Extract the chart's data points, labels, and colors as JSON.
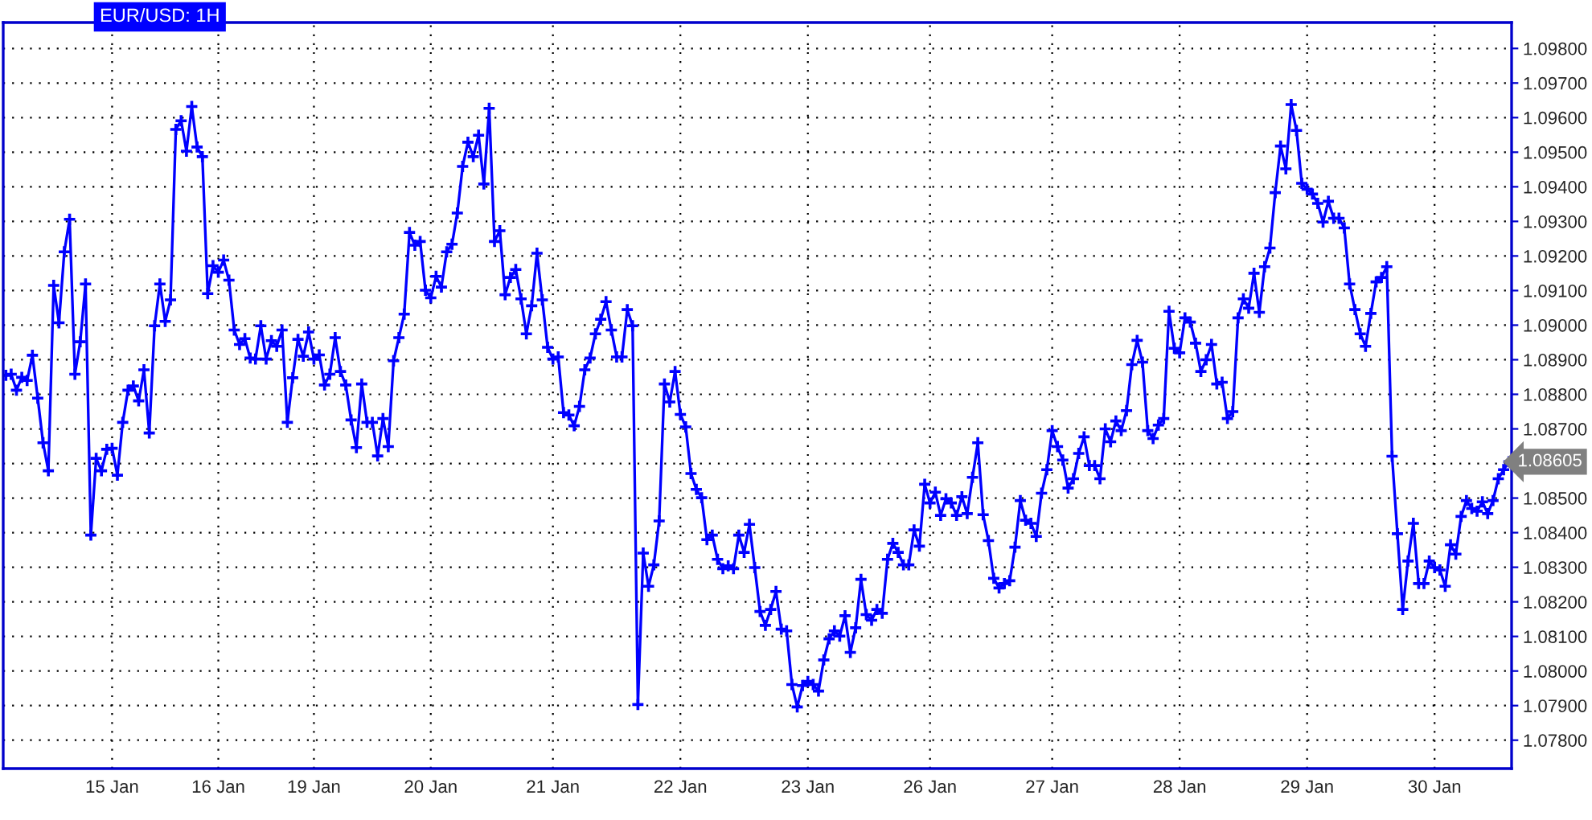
{
  "chart_data": {
    "type": "line",
    "title": "EUR/USD: 1H",
    "categories": [
      null,
      null,
      null,
      null,
      null,
      null,
      null,
      null,
      null,
      null,
      null,
      null,
      null,
      null,
      null,
      null,
      null,
      null,
      null,
      null,
      "15 Jan",
      null,
      null,
      null,
      null,
      null,
      null,
      null,
      null,
      null,
      null,
      null,
      null,
      null,
      null,
      null,
      null,
      null,
      null,
      null,
      "16 Jan",
      null,
      null,
      null,
      null,
      null,
      null,
      null,
      null,
      null,
      null,
      null,
      null,
      null,
      null,
      null,
      null,
      null,
      "19 Jan",
      null,
      null,
      null,
      null,
      null,
      null,
      null,
      null,
      null,
      null,
      null,
      null,
      null,
      null,
      null,
      null,
      null,
      null,
      null,
      null,
      null,
      "20 Jan",
      null,
      null,
      null,
      null,
      null,
      null,
      null,
      null,
      null,
      null,
      null,
      null,
      null,
      null,
      null,
      null,
      null,
      null,
      null,
      null,
      null,
      null,
      "21 Jan",
      null,
      null,
      null,
      null,
      null,
      null,
      null,
      null,
      null,
      null,
      null,
      null,
      null,
      null,
      null,
      null,
      null,
      null,
      null,
      null,
      null,
      null,
      null,
      "22 Jan",
      null,
      null,
      null,
      null,
      null,
      null,
      null,
      null,
      null,
      null,
      null,
      null,
      null,
      null,
      null,
      null,
      null,
      null,
      null,
      null,
      null,
      null,
      null,
      "23 Jan",
      null,
      null,
      null,
      null,
      null,
      null,
      null,
      null,
      null,
      null,
      null,
      null,
      null,
      null,
      null,
      null,
      null,
      null,
      null,
      null,
      null,
      null,
      "26 Jan",
      null,
      null,
      null,
      null,
      null,
      null,
      null,
      null,
      null,
      null,
      null,
      null,
      null,
      null,
      null,
      null,
      null,
      null,
      null,
      null,
      null,
      null,
      "27 Jan",
      null,
      null,
      null,
      null,
      null,
      null,
      null,
      null,
      null,
      null,
      null,
      null,
      null,
      null,
      null,
      null,
      null,
      null,
      null,
      null,
      null,
      null,
      null,
      "28 Jan",
      null,
      null,
      null,
      null,
      null,
      null,
      null,
      null,
      null,
      null,
      null,
      null,
      null,
      null,
      null,
      null,
      null,
      null,
      null,
      null,
      null,
      null,
      null,
      "29 Jan",
      null,
      null,
      null,
      null,
      null,
      null,
      null,
      null,
      null,
      null,
      null,
      null,
      null,
      null,
      null,
      null,
      null,
      null,
      null,
      null,
      null,
      null,
      null,
      "30 Jan",
      null,
      null,
      null,
      null,
      null,
      null,
      null,
      null,
      null,
      null,
      null,
      null,
      null,
      null
    ],
    "series": [
      {
        "color": "#0000ff",
        "values": [
          1.08855,
          1.08858,
          1.08812,
          1.08849,
          1.0884,
          1.08913,
          1.08789,
          1.0866,
          1.08579,
          1.09115,
          1.09007,
          1.09212,
          1.09306,
          1.08858,
          1.08952,
          1.09119,
          1.08393,
          1.08615,
          1.08579,
          1.08641,
          1.08644,
          1.08566,
          1.08719,
          1.08812,
          1.08824,
          1.08781,
          1.08871,
          1.08688,
          1.08998,
          1.09119,
          1.09011,
          1.09073,
          1.09566,
          1.09591,
          1.09503,
          1.09632,
          1.09515,
          1.09487,
          1.09091,
          1.09172,
          1.09153,
          1.09188,
          1.0913,
          1.08986,
          1.08944,
          1.08961,
          1.08905,
          1.08902,
          1.08998,
          1.08902,
          1.08955,
          1.08939,
          1.08986,
          1.08719,
          1.08848,
          1.08959,
          1.0891,
          1.0898,
          1.08902,
          1.08914,
          1.08827,
          1.08858,
          1.08964,
          1.08866,
          1.08827,
          1.08726,
          1.08646,
          1.0883,
          1.08719,
          1.08719,
          1.08622,
          1.0873,
          1.08649,
          1.08897,
          1.08964,
          1.09032,
          1.09268,
          1.09231,
          1.09242,
          1.09101,
          1.09079,
          1.09141,
          1.0911,
          1.09212,
          1.09234,
          1.09324,
          1.09459,
          1.09529,
          1.09487,
          1.09549,
          1.09408,
          1.09627,
          1.09242,
          1.09273,
          1.09088,
          1.09138,
          1.09161,
          1.09076,
          1.08975,
          1.09056,
          1.09208,
          1.09073,
          1.08936,
          1.08902,
          1.08908,
          1.08747,
          1.0874,
          1.08709,
          1.08765,
          1.08871,
          1.08905,
          1.08975,
          1.09017,
          1.09068,
          1.08986,
          1.08908,
          1.08908,
          1.09045,
          1.08998,
          1.07903,
          1.08341,
          1.08245,
          1.08307,
          1.08434,
          1.0883,
          1.08778,
          1.08866,
          1.08742,
          1.08706,
          1.08571,
          1.08525,
          1.08501,
          1.0838,
          1.08393,
          1.08323,
          1.08296,
          1.08304,
          1.08296,
          1.08393,
          1.08343,
          1.08424,
          1.08299,
          1.08172,
          1.08132,
          1.08178,
          1.0823,
          1.08121,
          1.08116,
          1.07961,
          1.07896,
          1.07958,
          1.0797,
          1.07961,
          1.07942,
          1.08032,
          1.08093,
          1.08116,
          1.08101,
          1.0816,
          1.08054,
          1.08125,
          1.08265,
          1.08163,
          1.08147,
          1.08178,
          1.08167,
          1.08323,
          1.08369,
          1.08343,
          1.08307,
          1.08307,
          1.08408,
          1.08361,
          1.0854,
          1.08486,
          1.08517,
          1.0845,
          1.08498,
          1.08486,
          1.0845,
          1.08504,
          1.08455,
          1.0856,
          1.0866,
          1.08452,
          1.08377,
          1.08268,
          1.0824,
          1.08253,
          1.08261,
          1.08358,
          1.08493,
          1.08436,
          1.08427,
          1.08389,
          1.08514,
          1.08582,
          1.08695,
          1.08649,
          1.0861,
          1.08529,
          1.08556,
          1.08629,
          1.08677,
          1.08594,
          1.08594,
          1.08556,
          1.087,
          1.08663,
          1.08723,
          1.08695,
          1.08753,
          1.08886,
          1.08956,
          1.08893,
          1.08695,
          1.08672,
          1.08711,
          1.0873,
          1.0904,
          1.08933,
          1.0892,
          1.09021,
          1.09009,
          1.08948,
          1.08866,
          1.089,
          1.08944,
          1.0883,
          1.08835,
          1.0873,
          1.0875,
          1.09021,
          1.09076,
          1.09049,
          1.0915,
          1.09037,
          1.09169,
          1.09223,
          1.09383,
          1.09518,
          1.09452,
          1.09638,
          1.09563,
          1.0941,
          1.09393,
          1.09379,
          1.09352,
          1.09298,
          1.09358,
          1.09309,
          1.09309,
          1.09281,
          1.09119,
          1.09045,
          1.08975,
          1.08939,
          1.09034,
          1.09125,
          1.09138,
          1.09169,
          1.08621,
          1.08397,
          1.08178,
          1.08318,
          1.08427,
          1.08253,
          1.08253,
          1.08318,
          1.08299,
          1.08292,
          1.08245,
          1.08365,
          1.08338,
          1.08447,
          1.08493,
          1.0847,
          1.08462,
          1.08489,
          1.08455,
          1.08493,
          1.08556,
          1.08582,
          1.08605
        ]
      }
    ],
    "marker": "cross",
    "line_style": "solid",
    "grid": true,
    "ylim": [
      1.07718,
      1.09875
    ],
    "yticks": [
      {
        "value": 1.078,
        "label": "1.07800"
      },
      {
        "value": 1.079,
        "label": "1.07900"
      },
      {
        "value": 1.08,
        "label": "1.08000"
      },
      {
        "value": 1.081,
        "label": "1.08100"
      },
      {
        "value": 1.082,
        "label": "1.08200"
      },
      {
        "value": 1.083,
        "label": "1.08300"
      },
      {
        "value": 1.084,
        "label": "1.08400"
      },
      {
        "value": 1.085,
        "label": "1.08500"
      },
      {
        "value": 1.086,
        "label": null
      },
      {
        "value": 1.087,
        "label": "1.08700"
      },
      {
        "value": 1.088,
        "label": "1.08800"
      },
      {
        "value": 1.089,
        "label": "1.08900"
      },
      {
        "value": 1.09,
        "label": "1.09000"
      },
      {
        "value": 1.091,
        "label": "1.09100"
      },
      {
        "value": 1.092,
        "label": "1.09200"
      },
      {
        "value": 1.093,
        "label": "1.09300"
      },
      {
        "value": 1.094,
        "label": "1.09400"
      },
      {
        "value": 1.095,
        "label": "1.09500"
      },
      {
        "value": 1.096,
        "label": "1.09600"
      },
      {
        "value": 1.097,
        "label": "1.09700"
      },
      {
        "value": 1.098,
        "label": "1.09800"
      }
    ],
    "annotations": [
      "1.08605"
    ]
  }
}
